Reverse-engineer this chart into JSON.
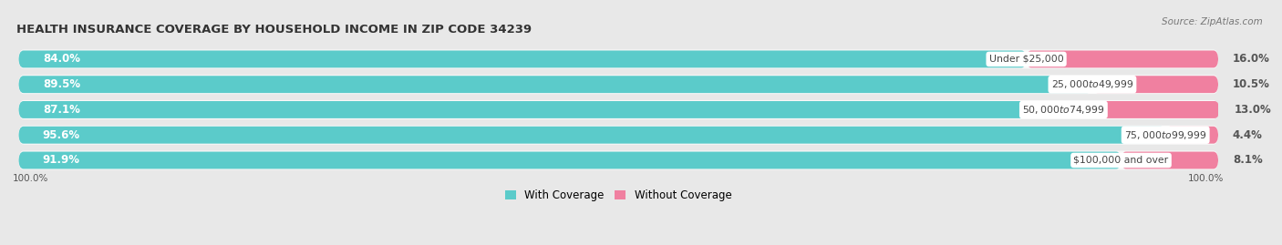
{
  "title": "HEALTH INSURANCE COVERAGE BY HOUSEHOLD INCOME IN ZIP CODE 34239",
  "source": "Source: ZipAtlas.com",
  "categories": [
    "Under $25,000",
    "$25,000 to $49,999",
    "$50,000 to $74,999",
    "$75,000 to $99,999",
    "$100,000 and over"
  ],
  "with_coverage": [
    84.0,
    89.5,
    87.1,
    95.6,
    91.9
  ],
  "without_coverage": [
    16.0,
    10.5,
    13.0,
    4.4,
    8.1
  ],
  "color_with": "#5BCBCA",
  "color_without": "#F080A0",
  "color_without_light": "#F8C0D0",
  "background_color": "#e8e8e8",
  "bar_background": "#f8f8f8",
  "label_color_with": "#ffffff",
  "axis_label_left": "100.0%",
  "axis_label_right": "100.0%",
  "legend_with": "With Coverage",
  "legend_without": "Without Coverage",
  "bar_height": 0.68,
  "bar_gap": 0.08
}
